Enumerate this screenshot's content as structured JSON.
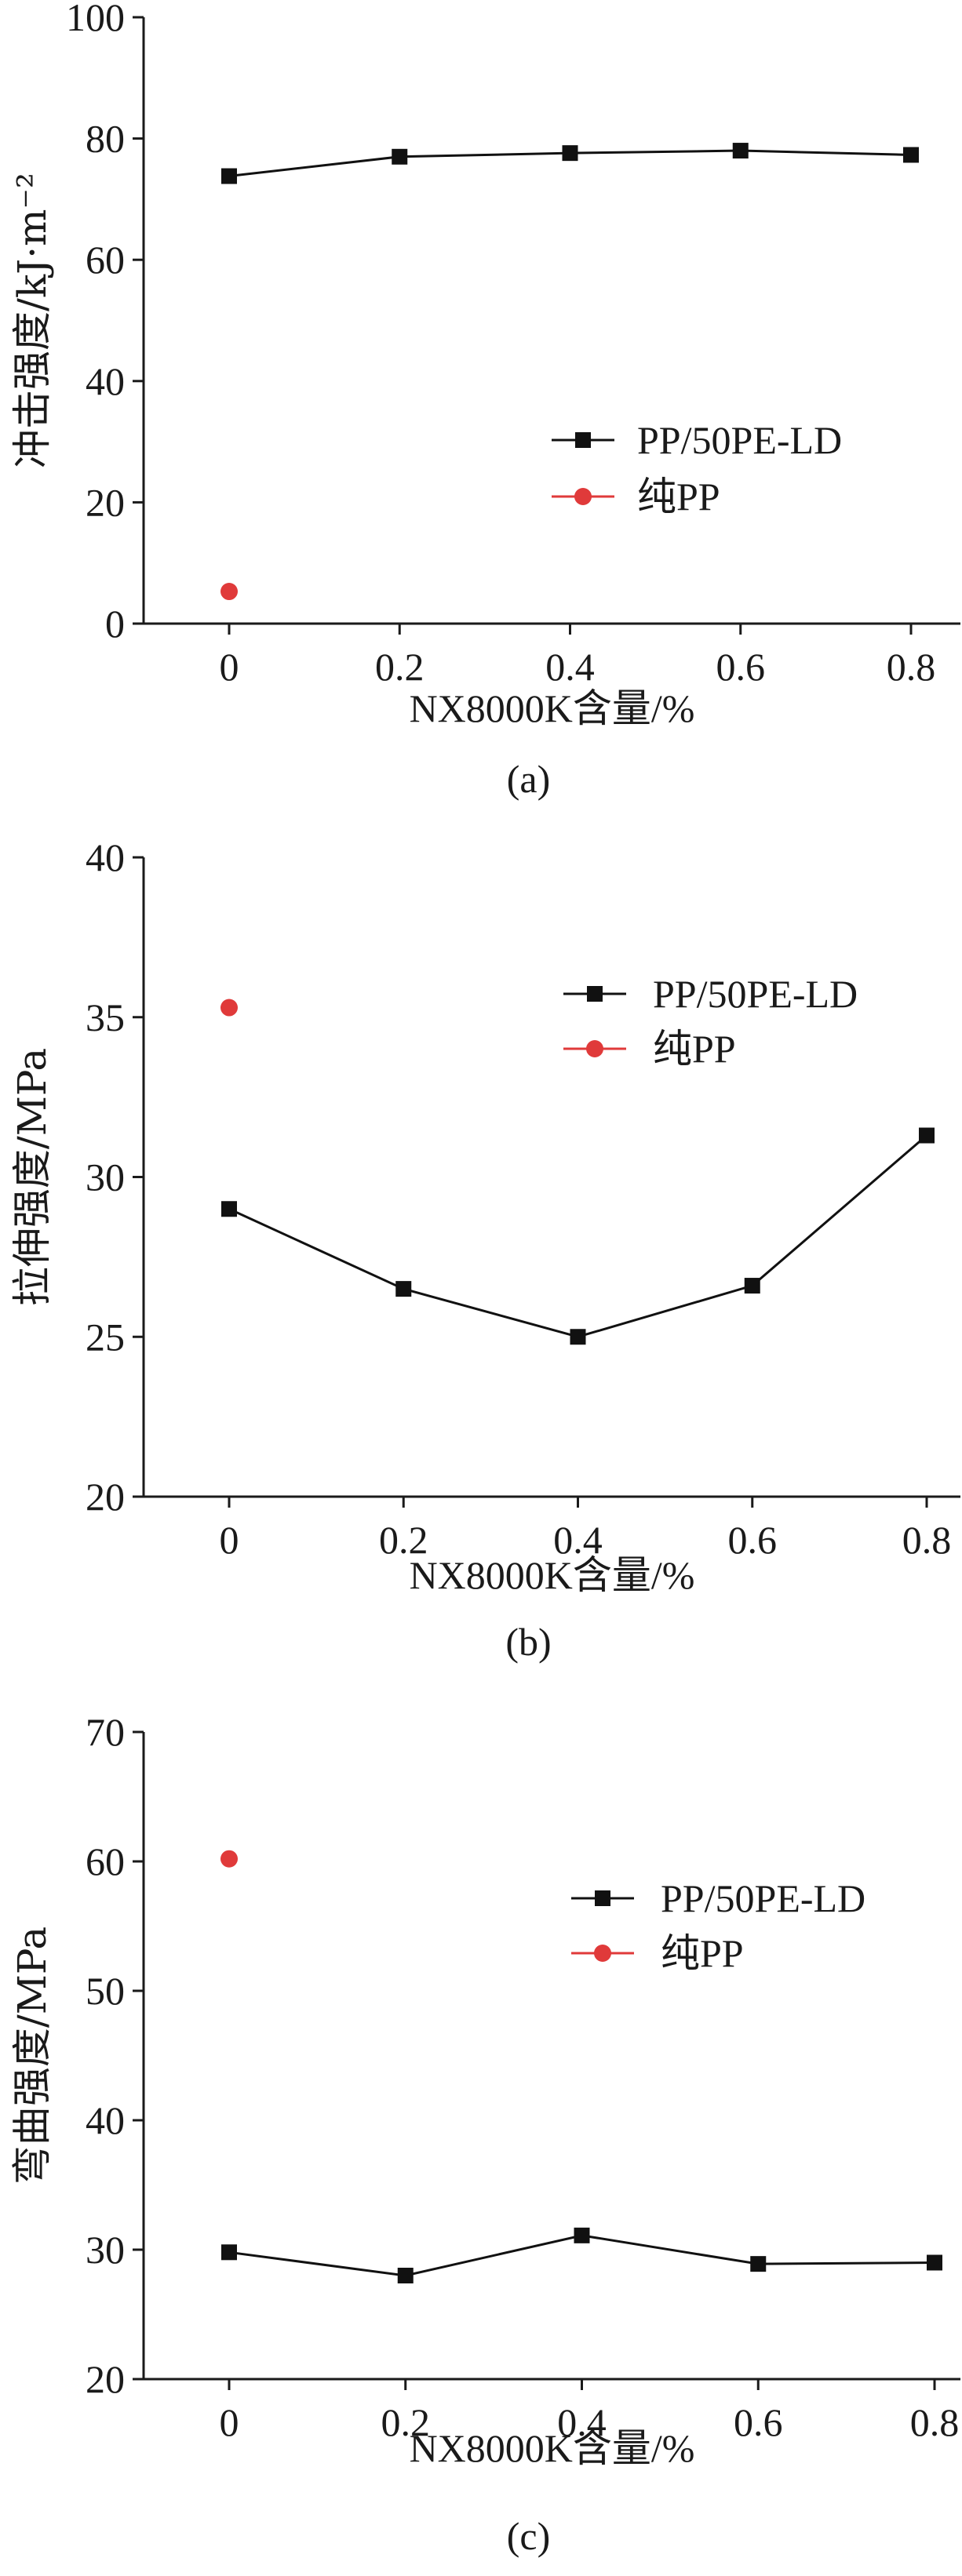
{
  "chart_data": [
    {
      "type": "line",
      "panel": "(a)",
      "xlabel": "NX8000K含量/%",
      "ylabel": "冲击强度/kJ·m⁻²",
      "xlim": [
        -0.1,
        0.8
      ],
      "ylim": [
        0,
        100
      ],
      "xticks": [
        "0",
        "0.2",
        "0.4",
        "0.6",
        "0.8"
      ],
      "yticks": [
        "0",
        "20",
        "40",
        "60",
        "80",
        "100"
      ],
      "legend_position": "right-middle",
      "grid": false,
      "series": [
        {
          "name": "PP/50PE-LD",
          "color": "#111111",
          "marker": "square",
          "x": [
            0,
            0.2,
            0.4,
            0.6,
            0.8
          ],
          "y": [
            73.8,
            77.0,
            77.6,
            78.0,
            77.3
          ]
        },
        {
          "name": "纯PP",
          "color": "#e03a3a",
          "marker": "circle",
          "x": [
            0
          ],
          "y": [
            5.3
          ]
        }
      ]
    },
    {
      "type": "line",
      "panel": "(b)",
      "xlabel": "NX8000K含量/%",
      "ylabel": "拉伸强度/MPa",
      "xlim": [
        -0.1,
        0.8
      ],
      "ylim": [
        20,
        40
      ],
      "xticks": [
        "0",
        "0.2",
        "0.4",
        "0.6",
        "0.8"
      ],
      "yticks": [
        "20",
        "25",
        "30",
        "35",
        "40"
      ],
      "legend_position": "top-right",
      "grid": false,
      "series": [
        {
          "name": "PP/50PE-LD",
          "color": "#111111",
          "marker": "square",
          "x": [
            0,
            0.2,
            0.4,
            0.6,
            0.8
          ],
          "y": [
            29.0,
            26.5,
            25.0,
            26.6,
            31.3
          ]
        },
        {
          "name": "纯PP",
          "color": "#e03a3a",
          "marker": "circle",
          "x": [
            0
          ],
          "y": [
            35.3
          ]
        }
      ]
    },
    {
      "type": "line",
      "panel": "(c)",
      "xlabel": "NX8000K含量/%",
      "ylabel": "弯曲强度/MPa",
      "xlim": [
        -0.1,
        0.8
      ],
      "ylim": [
        20,
        70
      ],
      "xticks": [
        "0",
        "0.2",
        "0.4",
        "0.6",
        "0.8"
      ],
      "yticks": [
        "20",
        "30",
        "40",
        "50",
        "60",
        "70"
      ],
      "legend_position": "top-right",
      "grid": false,
      "series": [
        {
          "name": "PP/50PE-LD",
          "color": "#111111",
          "marker": "square",
          "x": [
            0,
            0.2,
            0.4,
            0.6,
            0.8
          ],
          "y": [
            29.8,
            28.0,
            31.1,
            28.9,
            29.0
          ]
        },
        {
          "name": "纯PP",
          "color": "#e03a3a",
          "marker": "circle",
          "x": [
            0
          ],
          "y": [
            60.2
          ]
        }
      ]
    }
  ]
}
